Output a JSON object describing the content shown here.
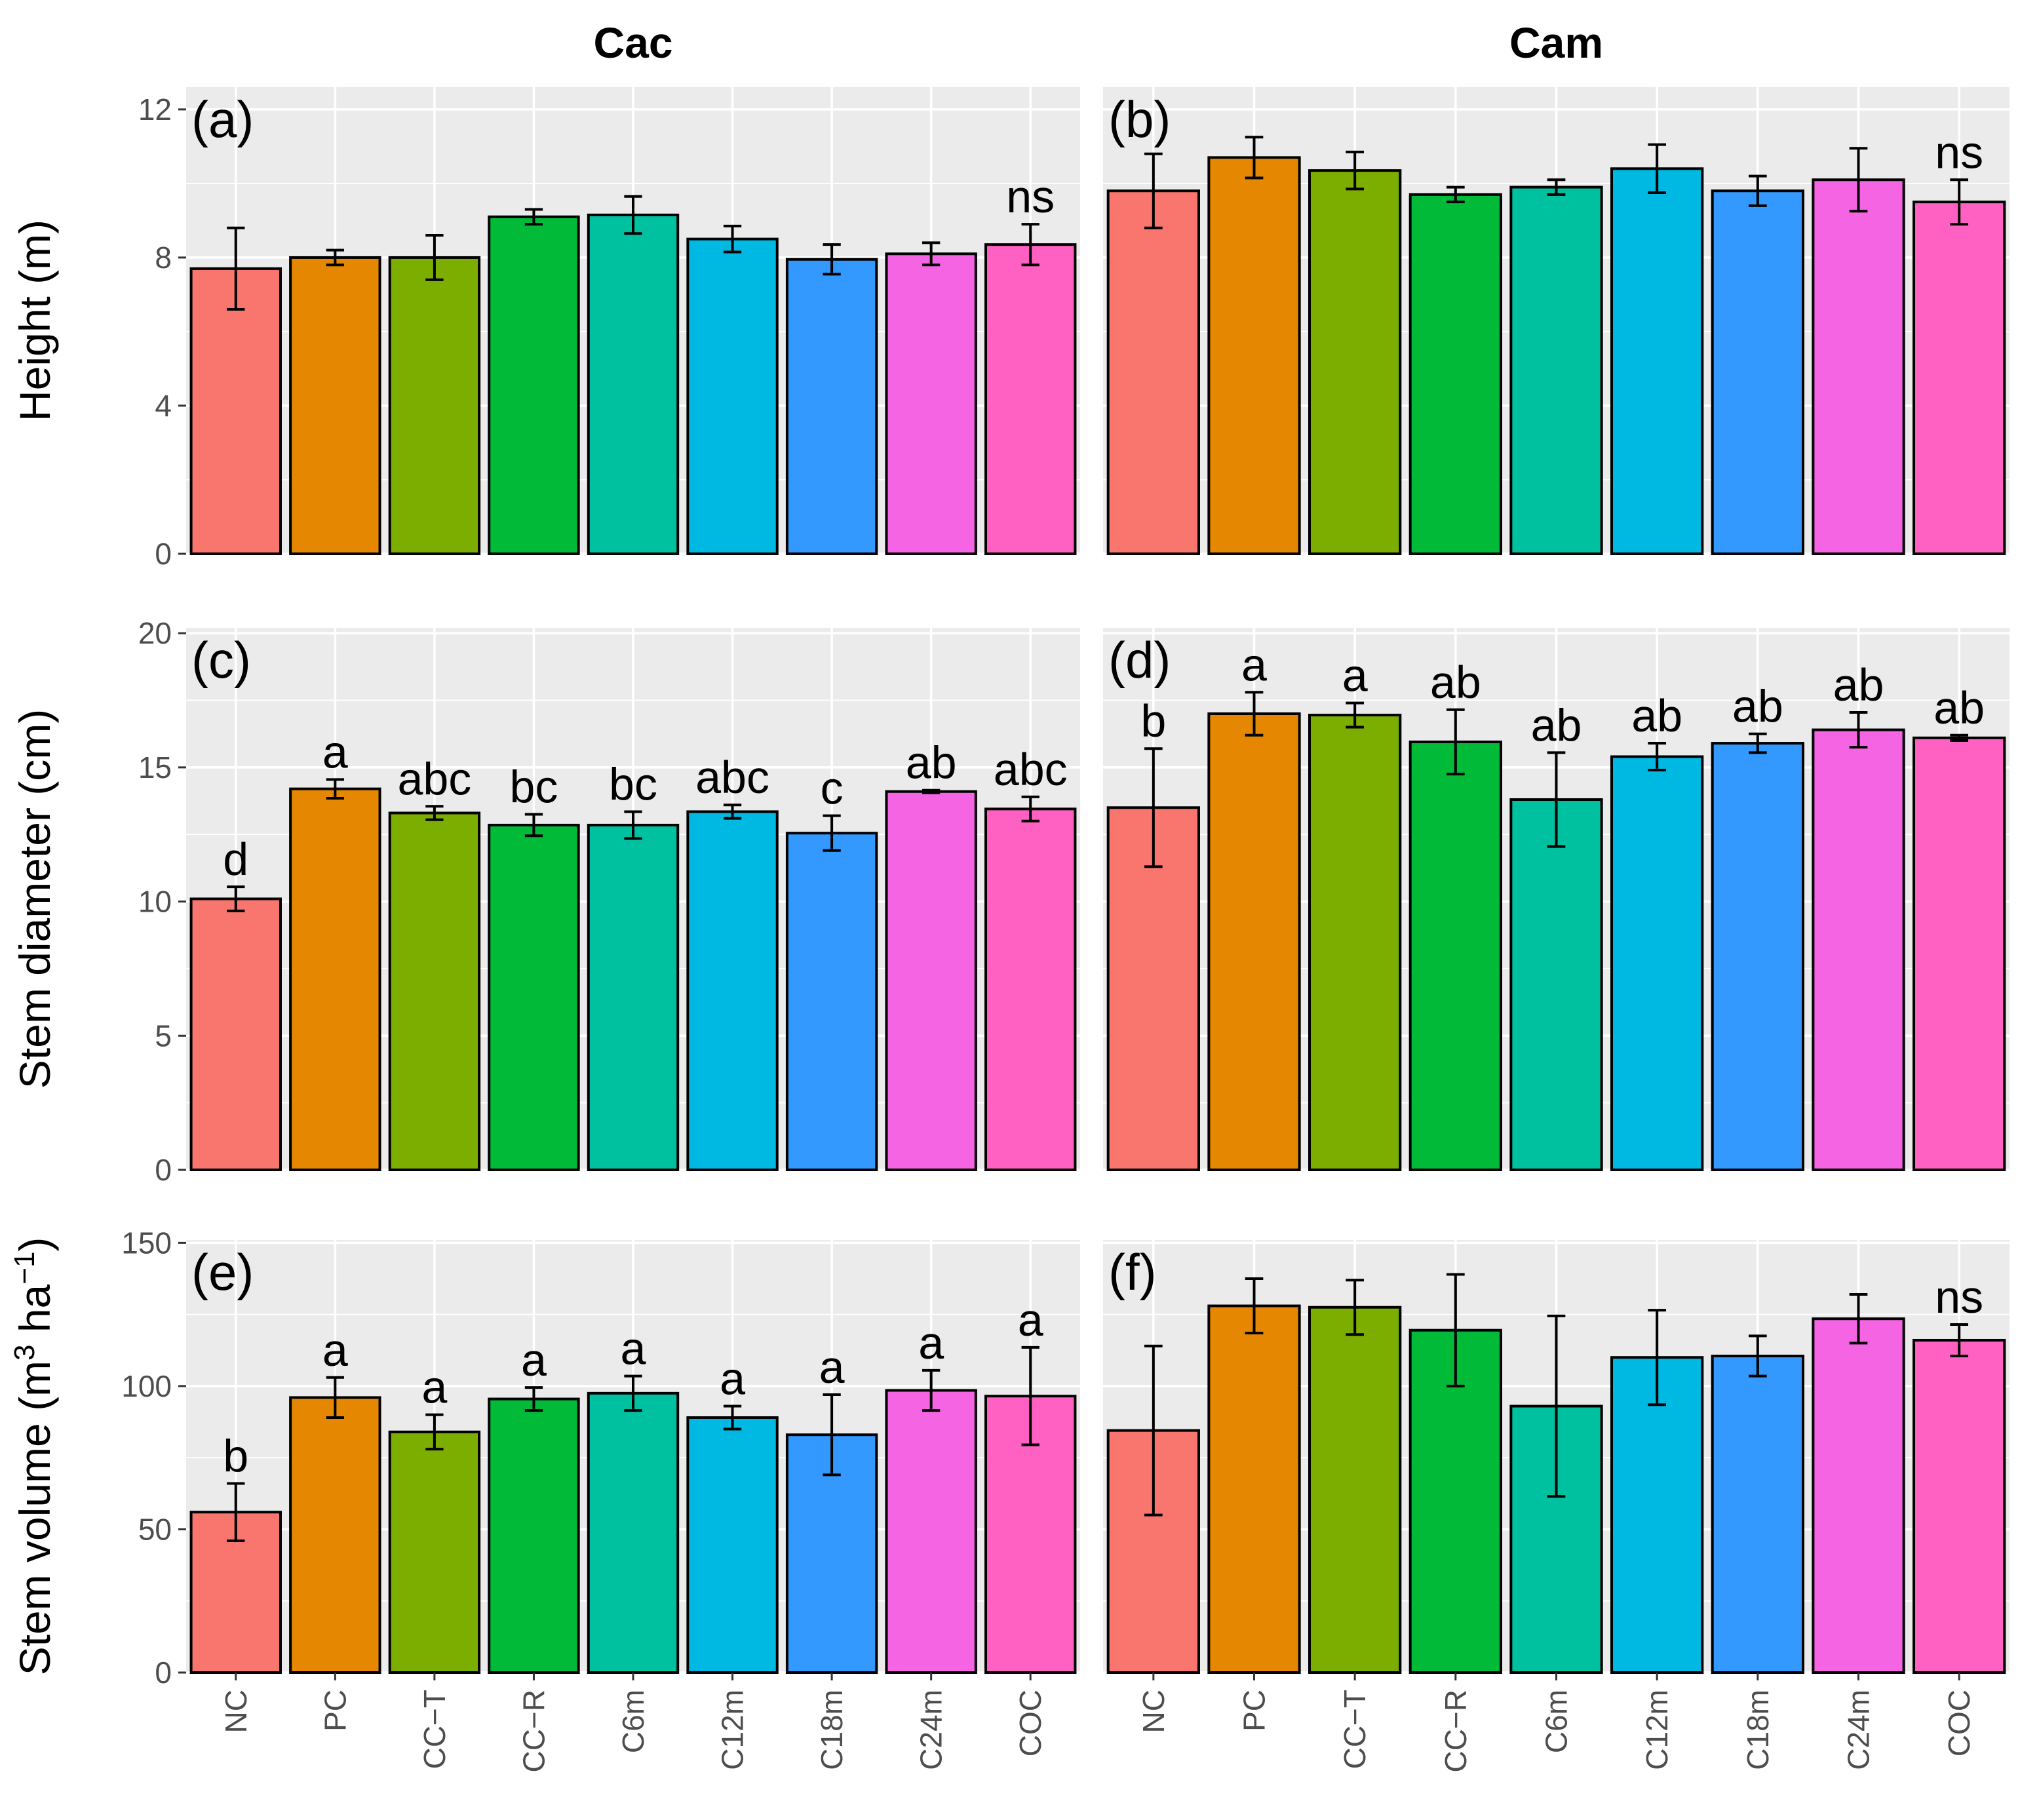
{
  "chart_data": {
    "type": "bar",
    "layout": "3 rows x 2 columns faceted bar chart",
    "column_titles": [
      "Cac",
      "Cam"
    ],
    "categories": [
      "NC",
      "PC",
      "CC−T",
      "CC−R",
      "C6m",
      "C12m",
      "C18m",
      "C24m",
      "COC"
    ],
    "colors": [
      "#F8766D",
      "#E58700",
      "#7CAE00",
      "#00BA38",
      "#00C19F",
      "#00B9E3",
      "#3399FF",
      "#F564E3",
      "#FF61C3"
    ],
    "rows": [
      {
        "ylabel": "Height (m)",
        "ylabel_parts": {
          "main": "Height (m)"
        },
        "ylim": [
          0,
          12.6
        ],
        "yticks": [
          0,
          4,
          8,
          12
        ],
        "ytick_labels": [
          "0",
          "4",
          "8",
          "12"
        ],
        "panels": [
          {
            "tag": "(a)",
            "column": "Cac",
            "values": [
              7.7,
              8.0,
              8.0,
              9.1,
              9.15,
              8.5,
              7.95,
              8.1,
              8.35
            ],
            "errors": [
              1.1,
              0.2,
              0.6,
              0.2,
              0.5,
              0.35,
              0.4,
              0.3,
              0.55
            ],
            "letters": [
              "",
              "",
              "",
              "",
              "",
              "",
              "",
              "",
              "ns"
            ]
          },
          {
            "tag": "(b)",
            "column": "Cam",
            "values": [
              9.8,
              10.7,
              10.35,
              9.7,
              9.9,
              10.4,
              9.8,
              10.1,
              9.5
            ],
            "errors": [
              1.0,
              0.55,
              0.5,
              0.2,
              0.2,
              0.65,
              0.4,
              0.85,
              0.6
            ],
            "letters": [
              "",
              "",
              "",
              "",
              "",
              "",
              "",
              "",
              "ns"
            ]
          }
        ]
      },
      {
        "ylabel": "Stem diameter (cm)",
        "ylabel_parts": {
          "main": "Stem diameter (cm)"
        },
        "ylim": [
          0,
          20.2
        ],
        "yticks": [
          0,
          5,
          10,
          15,
          20
        ],
        "ytick_labels": [
          "0",
          "5",
          "10",
          "15",
          "20"
        ],
        "panels": [
          {
            "tag": "(c)",
            "column": "Cac",
            "values": [
              10.1,
              14.2,
              13.3,
              12.85,
              12.85,
              13.35,
              12.55,
              14.1,
              13.45
            ],
            "errors": [
              0.45,
              0.35,
              0.25,
              0.4,
              0.5,
              0.25,
              0.65,
              0.05,
              0.45
            ],
            "letters": [
              "d",
              "a",
              "abc",
              "bc",
              "bc",
              "abc",
              "c",
              "ab",
              "abc"
            ]
          },
          {
            "tag": "(d)",
            "column": "Cam",
            "values": [
              13.5,
              17.0,
              16.95,
              15.95,
              13.8,
              15.4,
              15.9,
              16.4,
              16.1
            ],
            "errors": [
              2.2,
              0.8,
              0.45,
              1.2,
              1.75,
              0.5,
              0.35,
              0.65,
              0.1
            ],
            "letters": [
              "b",
              "a",
              "a",
              "ab",
              "ab",
              "ab",
              "ab",
              "ab",
              "ab"
            ]
          }
        ]
      },
      {
        "ylabel": "Stem volume (m³ ha⁻¹)",
        "ylabel_parts": {
          "pre": "Stem volume (m",
          "sup1": "3",
          "mid": " ha",
          "sup2": "−1",
          "post": ")"
        },
        "ylim": [
          0,
          151
        ],
        "yticks": [
          0,
          50,
          100,
          150
        ],
        "ytick_labels": [
          "0",
          "50",
          "100",
          "150"
        ],
        "panels": [
          {
            "tag": "(e)",
            "column": "Cac",
            "values": [
              56,
              96,
              84,
              95.5,
              97.5,
              89,
              83,
              98.5,
              96.5
            ],
            "errors": [
              10,
              7,
              6,
              4,
              6,
              4,
              14,
              7,
              17
            ],
            "letters": [
              "b",
              "a",
              "a",
              "a",
              "a",
              "a",
              "a",
              "a",
              "a"
            ]
          },
          {
            "tag": "(f)",
            "column": "Cam",
            "values": [
              84.5,
              128,
              127.5,
              119.5,
              93,
              110,
              110.5,
              123.5,
              116
            ],
            "errors": [
              29.5,
              9.5,
              9.5,
              19.5,
              31.5,
              16.5,
              7,
              8.5,
              5.5
            ],
            "letters": [
              "",
              "",
              "",
              "",
              "",
              "",
              "",
              "",
              "ns"
            ]
          }
        ]
      }
    ]
  }
}
